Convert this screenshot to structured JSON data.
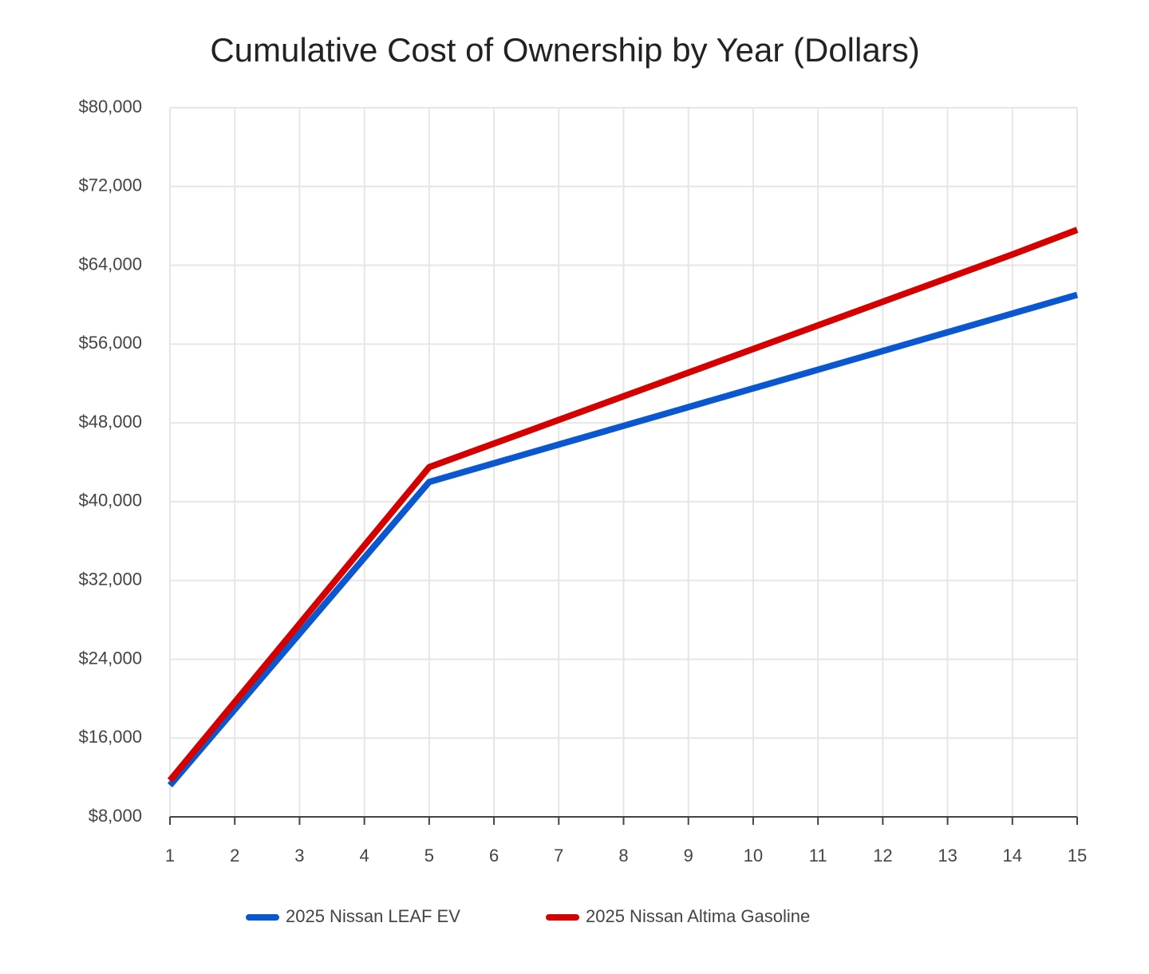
{
  "chart_data": {
    "type": "line",
    "title": "Cumulative Cost of Ownership by Year (Dollars)",
    "x": [
      1,
      2,
      3,
      4,
      5,
      6,
      7,
      8,
      9,
      10,
      11,
      12,
      13,
      14,
      15
    ],
    "series": [
      {
        "name": "2025 Nissan LEAF EV",
        "color": "#0b57d0",
        "values": [
          11200,
          18900,
          26600,
          34300,
          42000,
          43900,
          45800,
          47700,
          49600,
          51500,
          53400,
          55300,
          57200,
          59100,
          61000
        ]
      },
      {
        "name": "2025 Nissan Altima Gasoline",
        "color": "#d50000",
        "values": [
          11700,
          19650,
          27600,
          35550,
          43500,
          45900,
          48300,
          50700,
          53100,
          55500,
          57900,
          60300,
          62700,
          65100,
          67600
        ]
      }
    ],
    "xlim": [
      1,
      15
    ],
    "xticks": [
      1,
      2,
      3,
      4,
      5,
      6,
      7,
      8,
      9,
      10,
      11,
      12,
      13,
      14,
      15
    ],
    "ylim": [
      8000,
      80000
    ],
    "yticks": [
      {
        "value": 8000,
        "label": "$8,000"
      },
      {
        "value": 16000,
        "label": "$16,000"
      },
      {
        "value": 24000,
        "label": "$24,000"
      },
      {
        "value": 32000,
        "label": "$32,000"
      },
      {
        "value": 40000,
        "label": "$40,000"
      },
      {
        "value": 48000,
        "label": "$48,000"
      },
      {
        "value": 56000,
        "label": "$56,000"
      },
      {
        "value": 64000,
        "label": "$64,000"
      },
      {
        "value": 72000,
        "label": "$72,000"
      },
      {
        "value": 80000,
        "label": "$80,000"
      }
    ],
    "grid": true,
    "legend": "bottom"
  }
}
